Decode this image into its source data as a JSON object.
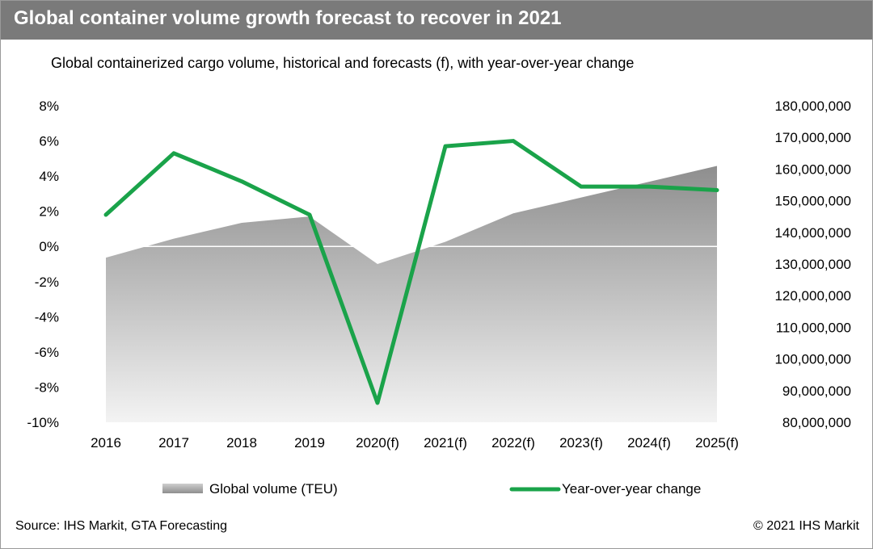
{
  "title": "Global container volume growth forecast to recover in 2021",
  "subtitle": "Global containerized cargo volume, historical and forecasts (f), with year-over-year change",
  "source": "Source: IHS Markit, GTA Forecasting",
  "copyright": "© 2021 IHS Markit",
  "colors": {
    "line": "#1aa34a",
    "area_top": "#8e8e8e",
    "area_bottom": "#f3f3f3",
    "title_bar": "#7a7a7a"
  },
  "chart_data": {
    "type": "area+line",
    "categories": [
      "2016",
      "2017",
      "2018",
      "2019",
      "2020(f)",
      "2021(f)",
      "2022(f)",
      "2023(f)",
      "2024(f)",
      "2025(f)"
    ],
    "series": [
      {
        "name": "Global volume (TEU)",
        "type": "area",
        "axis": "right",
        "values": [
          132000000,
          138000000,
          143000000,
          145000000,
          130000000,
          137000000,
          146000000,
          151000000,
          156000000,
          161000000
        ]
      },
      {
        "name": "Year-over-year change",
        "type": "line",
        "axis": "left",
        "values": [
          1.8,
          5.3,
          3.7,
          1.8,
          -8.9,
          5.7,
          6.0,
          3.4,
          3.4,
          3.2
        ]
      }
    ],
    "y_left": {
      "min": -10,
      "max": 8,
      "step": 2,
      "tick_labels": [
        "8%",
        "6%",
        "4%",
        "2%",
        "0%",
        "-2%",
        "-4%",
        "-6%",
        "-8%",
        "-10%"
      ]
    },
    "y_right": {
      "min": 80000000,
      "max": 180000000,
      "step": 10000000,
      "tick_labels": [
        "180,000,000",
        "170,000,000",
        "160,000,000",
        "150,000,000",
        "140,000,000",
        "130,000,000",
        "120,000,000",
        "110,000,000",
        "100,000,000",
        "90,000,000",
        "80,000,000"
      ]
    },
    "grid": false,
    "legend": {
      "position": "bottom",
      "items": [
        "Global volume (TEU)",
        "Year-over-year change"
      ]
    }
  }
}
